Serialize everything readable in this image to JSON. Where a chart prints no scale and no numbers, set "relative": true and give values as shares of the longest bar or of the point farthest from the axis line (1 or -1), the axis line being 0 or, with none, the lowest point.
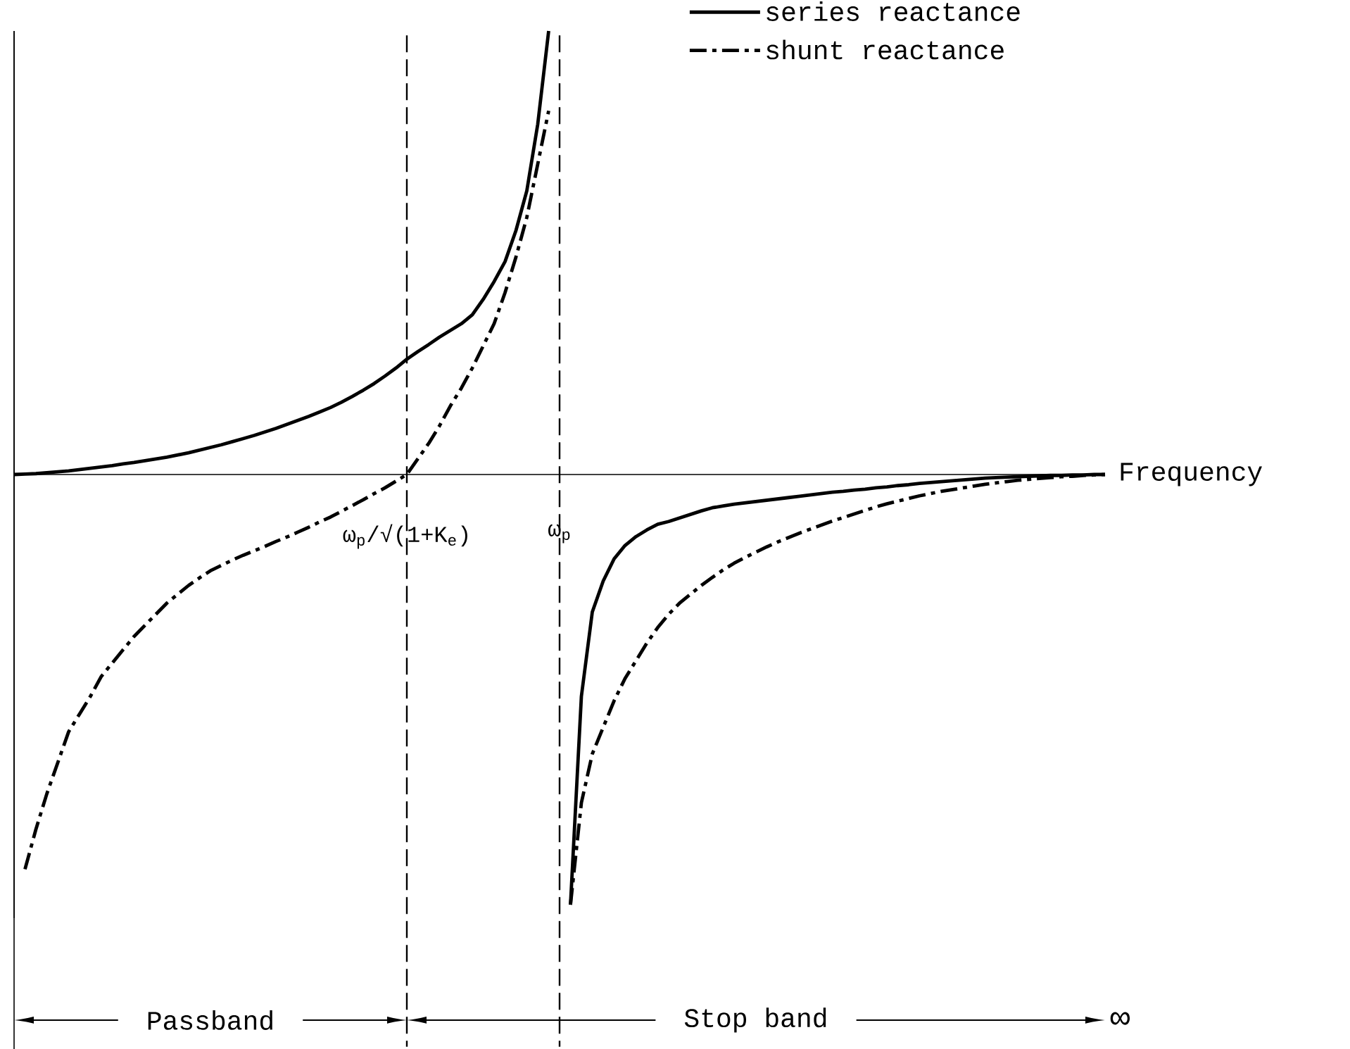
{
  "chart_data": {
    "type": "line",
    "relative": true,
    "xlabel": "Frequency",
    "categories": [
      null,
      null,
      null,
      null,
      null,
      null,
      null,
      null,
      null,
      null,
      null,
      null,
      null,
      null,
      null,
      null,
      null,
      null,
      null,
      null,
      null,
      null,
      null,
      null,
      null,
      null,
      null,
      null,
      null,
      null,
      null,
      null,
      null,
      null,
      null,
      null,
      "ω$_{p}$/√(1+K$_{e}$)",
      null,
      null,
      null,
      null,
      null,
      null,
      null,
      null,
      null,
      null,
      null,
      null,
      null,
      "ω$_{p}$",
      null,
      null,
      null,
      null,
      null,
      null,
      null,
      null,
      null,
      null,
      null,
      null,
      null,
      null,
      null,
      null,
      null,
      null,
      null,
      null,
      null,
      null,
      null,
      null,
      null,
      null,
      null,
      null,
      null,
      null,
      null,
      null,
      null,
      null,
      null,
      null,
      null,
      null,
      null,
      null,
      null,
      null,
      null,
      null,
      null,
      null,
      null,
      null,
      null,
      null
    ],
    "legend": "top right",
    "series": [
      {
        "name": "series reactance",
        "color": "#000000",
        "line_style": "solid",
        "values": [
          0,
          0.001,
          0.002,
          0.004,
          0.006,
          0.008,
          0.011,
          0.014,
          0.017,
          0.02,
          0.024,
          0.027,
          0.031,
          0.035,
          0.039,
          0.044,
          0.049,
          0.055,
          0.061,
          0.067,
          0.074,
          0.081,
          0.088,
          0.096,
          0.104,
          0.113,
          0.122,
          0.131,
          0.141,
          0.151,
          0.163,
          0.176,
          0.19,
          0.205,
          0.222,
          0.24,
          0.26,
          0.277,
          0.293,
          0.31,
          0.325,
          0.34,
          0.36,
          0.395,
          0.435,
          0.48,
          0.55,
          0.64,
          0.79,
          1,
          null,
          -0.97,
          -0.5,
          -0.31,
          -0.24,
          -0.19,
          -0.16,
          -0.14,
          -0.125,
          -0.112,
          -0.106,
          -0.098,
          -0.09,
          -0.082,
          -0.075,
          -0.071,
          -0.067,
          -0.064,
          -0.061,
          -0.058,
          -0.055,
          -0.052,
          -0.049,
          -0.046,
          -0.043,
          -0.04,
          -0.038,
          -0.035,
          -0.033,
          -0.03,
          -0.028,
          -0.025,
          -0.023,
          -0.02,
          -0.018,
          -0.016,
          -0.014,
          -0.012,
          -0.01,
          -0.008,
          -0.007,
          -0.006,
          -0.005,
          -0.004,
          -0.003,
          -0.002,
          -0.002,
          -0.001,
          -0.001,
          0,
          0
        ]
      },
      {
        "name": "shunt reactance",
        "color": "#000000",
        "line_style": "dashed",
        "values": [
          null,
          -0.89,
          -0.8,
          -0.72,
          -0.65,
          -0.58,
          -0.54,
          -0.5,
          -0.455,
          -0.425,
          -0.395,
          -0.365,
          -0.34,
          -0.315,
          -0.29,
          -0.27,
          -0.25,
          -0.233,
          -0.217,
          -0.205,
          -0.193,
          -0.182,
          -0.172,
          -0.162,
          -0.151,
          -0.141,
          -0.13,
          -0.119,
          -0.107,
          -0.096,
          -0.083,
          -0.07,
          -0.057,
          -0.043,
          -0.03,
          -0.015,
          0,
          0.035,
          0.07,
          0.11,
          0.155,
          0.195,
          0.24,
          0.29,
          0.34,
          0.41,
          0.49,
          0.58,
          0.7,
          0.82,
          null,
          -0.97,
          -0.74,
          -0.63,
          -0.57,
          -0.51,
          -0.46,
          -0.42,
          -0.38,
          -0.345,
          -0.315,
          -0.29,
          -0.27,
          -0.25,
          -0.232,
          -0.215,
          -0.2,
          -0.187,
          -0.175,
          -0.163,
          -0.152,
          -0.142,
          -0.132,
          -0.123,
          -0.114,
          -0.105,
          -0.097,
          -0.089,
          -0.081,
          -0.073,
          -0.066,
          -0.06,
          -0.054,
          -0.048,
          -0.043,
          -0.038,
          -0.034,
          -0.03,
          -0.026,
          -0.022,
          -0.019,
          -0.016,
          -0.013,
          -0.011,
          -0.009,
          -0.007,
          -0.005,
          -0.004,
          -0.002,
          -0.001,
          0
        ]
      }
    ],
    "ref_lines": [
      {
        "axis": "x",
        "value": "ω$_{p}$/√(1+K$_{e}$)",
        "line_style": "dashed"
      },
      {
        "axis": "x",
        "value": "ω$_{p}$",
        "line_style": "dashed"
      }
    ],
    "annotations": [
      "Passband",
      "Stop band",
      "∞"
    ]
  }
}
